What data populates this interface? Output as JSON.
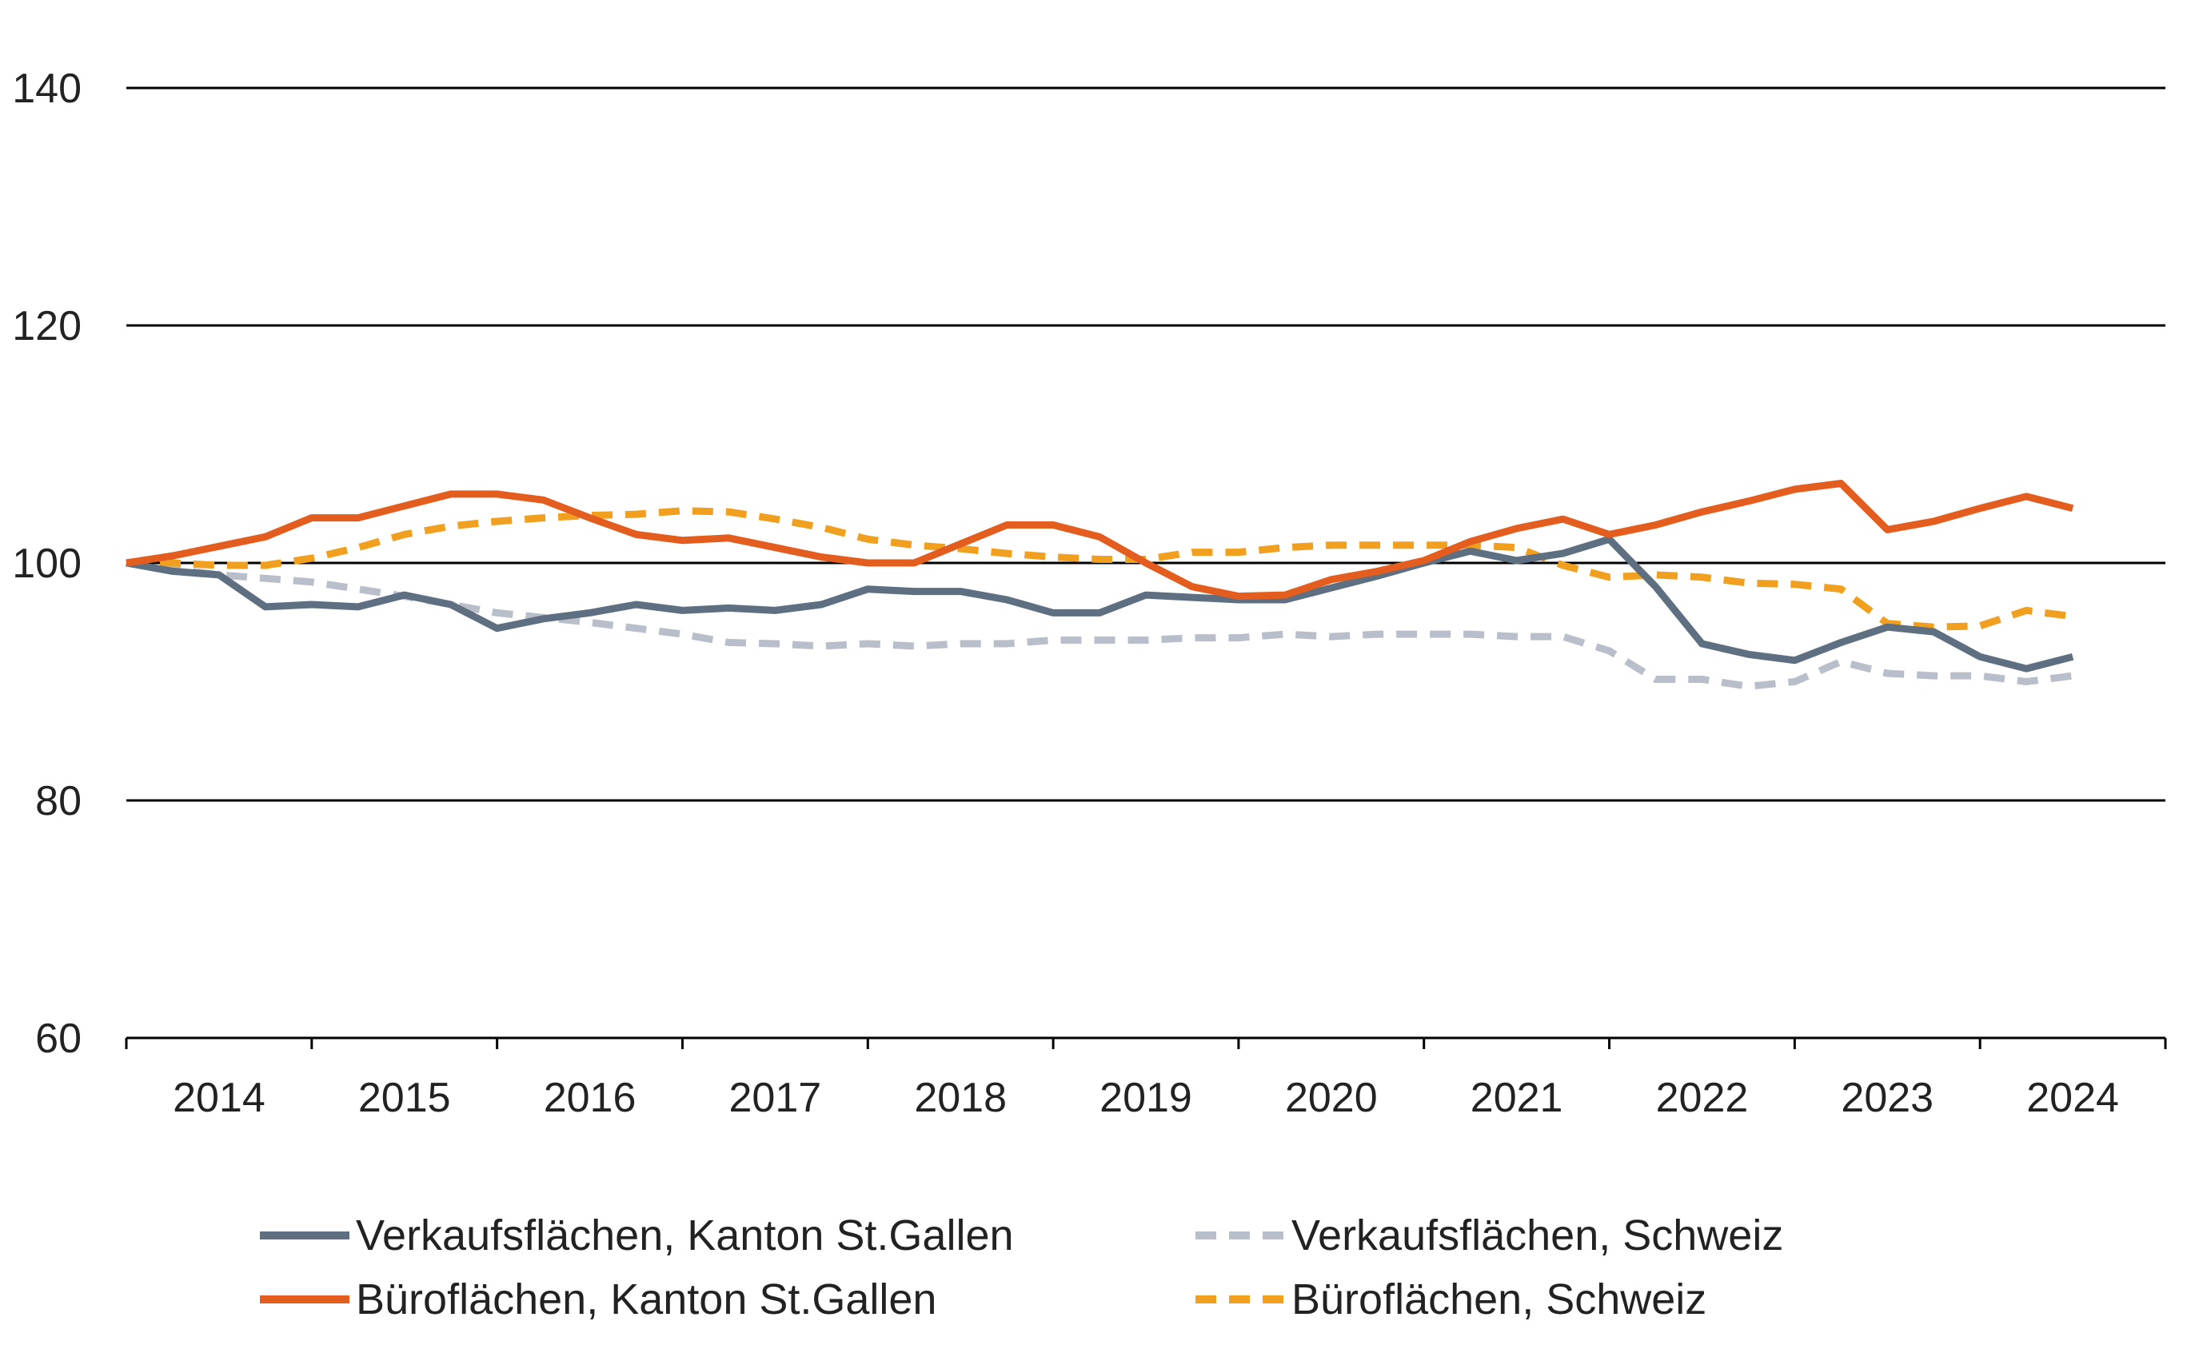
{
  "chart_data": {
    "type": "line",
    "title": "",
    "xlabel": "",
    "ylabel": "",
    "ylim": [
      60,
      140
    ],
    "yticks": [
      60,
      80,
      100,
      120,
      140
    ],
    "xlim": [
      2014,
      2025
    ],
    "xticks": [
      "2014",
      "2015",
      "2016",
      "2017",
      "2018",
      "2019",
      "2020",
      "2021",
      "2022",
      "2023",
      "2024"
    ],
    "grid": "horizontal at 80, 100, 120, 140",
    "legend_position": "bottom",
    "series": [
      {
        "name": "Verkaufsflächen, Kanton St.Gallen",
        "color": "#5f6f82",
        "style": "solid",
        "x": [
          2014.0,
          2014.25,
          2014.5,
          2014.75,
          2015.0,
          2015.25,
          2015.5,
          2015.75,
          2016.0,
          2016.25,
          2016.5,
          2016.75,
          2017.0,
          2017.25,
          2017.5,
          2017.75,
          2018.0,
          2018.25,
          2018.5,
          2018.75,
          2019.0,
          2019.25,
          2019.5,
          2019.75,
          2020.0,
          2020.25,
          2020.5,
          2020.75,
          2021.0,
          2021.25,
          2021.5,
          2021.75,
          2022.0,
          2022.25,
          2022.5,
          2022.75,
          2023.0,
          2023.25,
          2023.5,
          2023.75,
          2024.0,
          2024.25,
          2024.5
        ],
        "values": [
          100.0,
          99.3,
          99.0,
          96.3,
          96.5,
          96.3,
          97.3,
          96.5,
          94.5,
          95.3,
          95.8,
          96.5,
          96.0,
          96.2,
          96.0,
          96.5,
          97.8,
          97.6,
          97.6,
          96.9,
          95.8,
          95.8,
          97.3,
          97.1,
          96.9,
          96.9,
          97.9,
          98.9,
          100.0,
          101.0,
          100.2,
          100.8,
          102.0,
          98.0,
          93.2,
          92.3,
          91.8,
          93.3,
          94.6,
          94.2,
          92.1,
          91.1,
          92.1
        ]
      },
      {
        "name": "Verkaufsflächen, Schweiz",
        "color": "#b9bfca",
        "style": "dashed",
        "x": [
          2014.0,
          2014.25,
          2014.5,
          2014.75,
          2015.0,
          2015.25,
          2015.5,
          2015.75,
          2016.0,
          2016.25,
          2016.5,
          2016.75,
          2017.0,
          2017.25,
          2017.5,
          2017.75,
          2018.0,
          2018.25,
          2018.5,
          2018.75,
          2019.0,
          2019.25,
          2019.5,
          2019.75,
          2020.0,
          2020.25,
          2020.5,
          2020.75,
          2021.0,
          2021.25,
          2021.5,
          2021.75,
          2022.0,
          2022.25,
          2022.5,
          2022.75,
          2023.0,
          2023.25,
          2023.5,
          2023.75,
          2024.0,
          2024.25,
          2024.5
        ],
        "values": [
          100.0,
          99.5,
          99.0,
          98.7,
          98.4,
          97.8,
          97.2,
          96.5,
          95.8,
          95.4,
          95.0,
          94.5,
          94.0,
          93.3,
          93.2,
          93.0,
          93.2,
          93.0,
          93.2,
          93.2,
          93.5,
          93.5,
          93.5,
          93.7,
          93.7,
          94.0,
          93.8,
          94.0,
          94.0,
          94.0,
          93.8,
          93.8,
          92.6,
          90.2,
          90.2,
          89.6,
          90.0,
          91.7,
          90.7,
          90.5,
          90.5,
          90.0,
          90.5
        ]
      },
      {
        "name": "Büroflächen, Kanton St.Gallen",
        "color": "#e35d1e",
        "style": "solid",
        "x": [
          2014.0,
          2014.25,
          2014.5,
          2014.75,
          2015.0,
          2015.25,
          2015.5,
          2015.75,
          2016.0,
          2016.25,
          2016.5,
          2016.75,
          2017.0,
          2017.25,
          2017.5,
          2017.75,
          2018.0,
          2018.25,
          2018.5,
          2018.75,
          2019.0,
          2019.25,
          2019.5,
          2019.75,
          2020.0,
          2020.25,
          2020.5,
          2020.75,
          2021.0,
          2021.25,
          2021.5,
          2021.75,
          2022.0,
          2022.25,
          2022.5,
          2022.75,
          2023.0,
          2023.25,
          2023.5,
          2023.75,
          2024.0,
          2024.25,
          2024.5
        ],
        "values": [
          100.0,
          100.6,
          101.4,
          102.2,
          103.8,
          103.8,
          104.8,
          105.8,
          105.8,
          105.3,
          103.8,
          102.4,
          101.9,
          102.1,
          101.3,
          100.5,
          100.0,
          100.0,
          101.6,
          103.2,
          103.2,
          102.2,
          100.0,
          98.0,
          97.2,
          97.3,
          98.6,
          99.3,
          100.2,
          101.8,
          102.9,
          103.7,
          102.4,
          103.2,
          104.3,
          105.2,
          106.2,
          106.7,
          102.8,
          103.5,
          104.6,
          105.6,
          104.6
        ]
      },
      {
        "name": "Büroflächen, Schweiz",
        "color": "#f0a01e",
        "style": "dashed",
        "x": [
          2014.0,
          2014.25,
          2014.5,
          2014.75,
          2015.0,
          2015.25,
          2015.5,
          2015.75,
          2016.0,
          2016.25,
          2016.5,
          2016.75,
          2017.0,
          2017.25,
          2017.5,
          2017.75,
          2018.0,
          2018.25,
          2018.5,
          2018.75,
          2019.0,
          2019.25,
          2019.5,
          2019.75,
          2020.0,
          2020.25,
          2020.5,
          2020.75,
          2021.0,
          2021.25,
          2021.5,
          2021.75,
          2022.0,
          2022.25,
          2022.5,
          2022.75,
          2023.0,
          2023.25,
          2023.5,
          2023.75,
          2024.0,
          2024.25,
          2024.5
        ],
        "values": [
          100.0,
          100.0,
          99.8,
          99.8,
          100.4,
          101.3,
          102.4,
          103.1,
          103.5,
          103.8,
          104.0,
          104.1,
          104.4,
          104.3,
          103.7,
          103.0,
          102.0,
          101.5,
          101.2,
          100.8,
          100.5,
          100.3,
          100.3,
          100.9,
          100.9,
          101.3,
          101.5,
          101.5,
          101.5,
          101.5,
          101.3,
          99.8,
          98.8,
          99.0,
          98.8,
          98.3,
          98.2,
          97.8,
          94.9,
          94.6,
          94.7,
          96.0,
          95.5
        ]
      }
    ]
  }
}
